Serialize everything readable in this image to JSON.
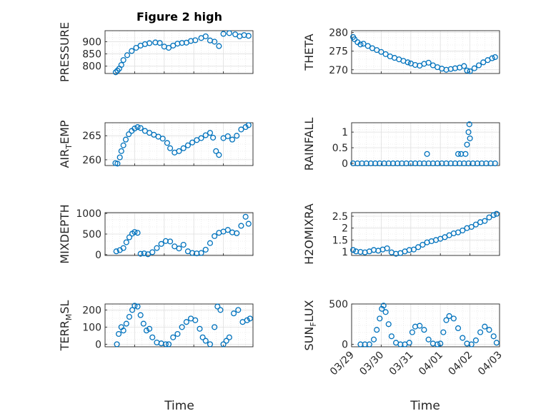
{
  "figure_title": "Figure 2 high",
  "colors": {
    "marker": "#0072BD",
    "axis": "#262626",
    "grid": "#DFDFDF"
  },
  "chart_data": [
    {
      "type": "scatter",
      "ylabel": "PRESSURE",
      "yticks": [
        800,
        850,
        900
      ],
      "ylim": [
        770,
        945
      ],
      "xlim": [
        0,
        5
      ],
      "x_tick_labels_shown": false,
      "x": [
        0.36,
        0.42,
        0.48,
        0.55,
        0.62,
        0.75,
        0.9,
        1.05,
        1.2,
        1.35,
        1.5,
        1.7,
        1.85,
        2.0,
        2.15,
        2.3,
        2.45,
        2.6,
        2.75,
        2.9,
        3.05,
        3.25,
        3.4,
        3.55,
        3.7,
        3.85,
        4.0,
        4.2,
        4.4,
        4.55,
        4.7,
        4.85
      ],
      "y": [
        775,
        782,
        790,
        805,
        825,
        845,
        862,
        875,
        884,
        890,
        894,
        897,
        895,
        880,
        875,
        884,
        892,
        895,
        896,
        903,
        906,
        915,
        922,
        905,
        900,
        882,
        932,
        935,
        930,
        922,
        927,
        924
      ]
    },
    {
      "type": "scatter",
      "ylabel": "THETA",
      "yticks": [
        270,
        275,
        280
      ],
      "ylim": [
        269,
        280.5
      ],
      "xlim": [
        0,
        5
      ],
      "x_tick_labels_shown": false,
      "x": [
        0.05,
        0.1,
        0.2,
        0.3,
        0.4,
        0.55,
        0.7,
        0.85,
        1.0,
        1.15,
        1.3,
        1.45,
        1.6,
        1.75,
        1.9,
        2.0,
        2.15,
        2.3,
        2.45,
        2.6,
        2.75,
        2.9,
        3.05,
        3.2,
        3.35,
        3.5,
        3.65,
        3.8,
        3.9,
        4.0,
        4.15,
        4.3,
        4.45,
        4.6,
        4.75,
        4.85
      ],
      "y": [
        278.8,
        278.2,
        277.4,
        276.8,
        277.0,
        276.4,
        275.8,
        275.3,
        274.8,
        274.2,
        273.6,
        273.2,
        272.8,
        272.4,
        272.0,
        271.7,
        271.3,
        271.1,
        271.6,
        271.9,
        271.2,
        270.7,
        270.3,
        270.0,
        270.2,
        270.4,
        270.6,
        271.0,
        269.8,
        269.6,
        270.4,
        271.2,
        272.0,
        272.6,
        273.1,
        273.4
      ]
    },
    {
      "type": "scatter",
      "ylabel": "AIR_TEMP",
      "yticks": [
        260,
        265
      ],
      "ylim": [
        258.8,
        267.7
      ],
      "xlim": [
        0,
        5
      ],
      "x_tick_labels_shown": false,
      "x": [
        0.35,
        0.42,
        0.5,
        0.55,
        0.62,
        0.7,
        0.8,
        0.9,
        1.0,
        1.1,
        1.2,
        1.35,
        1.5,
        1.65,
        1.8,
        1.95,
        2.1,
        2.2,
        2.35,
        2.5,
        2.65,
        2.8,
        2.95,
        3.1,
        3.25,
        3.4,
        3.55,
        3.65,
        3.75,
        3.85,
        4.0,
        4.15,
        4.3,
        4.45,
        4.6,
        4.75,
        4.85
      ],
      "y": [
        259.3,
        259.2,
        260.5,
        261.8,
        263.0,
        264.2,
        265.3,
        266.0,
        266.5,
        266.8,
        266.6,
        266.0,
        265.6,
        265.2,
        264.8,
        264.4,
        263.5,
        262.4,
        261.5,
        261.8,
        262.4,
        263.0,
        263.6,
        264.1,
        264.5,
        265.1,
        265.6,
        264.6,
        261.8,
        261.0,
        264.5,
        264.9,
        264.2,
        265.0,
        266.3,
        266.8,
        267.2
      ]
    },
    {
      "type": "scatter",
      "ylabel": "RAINFALL",
      "yticks": [
        0,
        0.5,
        1
      ],
      "ylim": [
        -0.07,
        1.3
      ],
      "xlim": [
        0,
        5
      ],
      "x_tick_labels_shown": false,
      "x": [
        0.05,
        0.2,
        0.35,
        0.5,
        0.65,
        0.8,
        0.95,
        1.1,
        1.25,
        1.4,
        1.55,
        1.7,
        1.85,
        2.0,
        2.15,
        2.3,
        2.45,
        2.6,
        2.75,
        2.9,
        3.05,
        3.2,
        3.35,
        3.5,
        3.65,
        3.8,
        3.95,
        4.1,
        4.25,
        4.4,
        4.55,
        4.7,
        4.85,
        2.55,
        3.6,
        3.7,
        3.85,
        3.9,
        3.95,
        3.98,
        4.0
      ],
      "y": [
        0,
        0,
        0,
        0,
        0,
        0,
        0,
        0,
        0,
        0,
        0,
        0,
        0,
        0,
        0,
        0,
        0,
        0,
        0,
        0,
        0,
        0,
        0,
        0,
        0,
        0,
        0,
        0,
        0,
        0,
        0,
        0,
        0,
        0.3,
        0.3,
        0.3,
        0.3,
        0.6,
        1.0,
        1.25,
        0.8
      ]
    },
    {
      "type": "scatter",
      "ylabel": "MIXDEPTH",
      "yticks": [
        0,
        500,
        1000
      ],
      "ylim": [
        -20,
        1020
      ],
      "xlim": [
        0,
        5
      ],
      "x_tick_labels_shown": false,
      "x": [
        0.38,
        0.5,
        0.62,
        0.72,
        0.82,
        0.92,
        1.0,
        1.1,
        1.2,
        1.32,
        1.45,
        1.6,
        1.75,
        1.9,
        2.05,
        2.2,
        2.35,
        2.5,
        2.65,
        2.8,
        2.95,
        3.1,
        3.25,
        3.4,
        3.55,
        3.7,
        3.85,
        4.0,
        4.15,
        4.3,
        4.45,
        4.6,
        4.75,
        4.85
      ],
      "y": [
        80,
        110,
        160,
        300,
        420,
        510,
        550,
        530,
        20,
        30,
        10,
        60,
        160,
        260,
        330,
        320,
        200,
        150,
        240,
        80,
        40,
        30,
        40,
        120,
        280,
        450,
        530,
        560,
        600,
        540,
        520,
        700,
        920,
        750
      ]
    },
    {
      "type": "scatter",
      "ylabel": "H2OMIXRA",
      "yticks": [
        1,
        1.5,
        2,
        2.5
      ],
      "ylim": [
        0.85,
        2.65
      ],
      "xlim": [
        0,
        5
      ],
      "x_tick_labels_shown": false,
      "x": [
        0.05,
        0.15,
        0.3,
        0.45,
        0.6,
        0.75,
        0.9,
        1.05,
        1.2,
        1.35,
        1.5,
        1.65,
        1.8,
        1.95,
        2.1,
        2.25,
        2.4,
        2.55,
        2.7,
        2.85,
        3.0,
        3.15,
        3.3,
        3.45,
        3.6,
        3.75,
        3.9,
        4.05,
        4.2,
        4.35,
        4.5,
        4.65,
        4.8,
        4.9
      ],
      "y": [
        1.08,
        1.02,
        1.0,
        0.98,
        1.02,
        1.08,
        1.05,
        1.1,
        1.15,
        0.98,
        0.92,
        0.95,
        1.02,
        1.08,
        1.1,
        1.2,
        1.3,
        1.4,
        1.45,
        1.5,
        1.55,
        1.62,
        1.7,
        1.78,
        1.82,
        1.9,
        2.0,
        2.05,
        2.15,
        2.25,
        2.3,
        2.45,
        2.55,
        2.6
      ]
    },
    {
      "type": "scatter",
      "ylabel": "TERR_MSL",
      "yticks": [
        0,
        100,
        200
      ],
      "ylim": [
        -15,
        235
      ],
      "xlim": [
        0,
        5
      ],
      "x_tick_labels_shown": false,
      "x": [
        0.4,
        0.46,
        0.55,
        0.62,
        0.72,
        0.82,
        0.92,
        1.0,
        1.1,
        1.2,
        1.3,
        1.4,
        1.5,
        1.6,
        1.75,
        1.9,
        2.05,
        2.15,
        2.3,
        2.45,
        2.6,
        2.75,
        2.9,
        3.05,
        3.2,
        3.3,
        3.4,
        3.55,
        3.7,
        3.8,
        3.9,
        4.0,
        4.1,
        4.2,
        4.35,
        4.5,
        4.65,
        4.8,
        4.9
      ],
      "y": [
        0,
        60,
        100,
        80,
        120,
        160,
        200,
        225,
        220,
        170,
        120,
        80,
        90,
        40,
        10,
        5,
        0,
        0,
        40,
        60,
        100,
        130,
        150,
        140,
        90,
        40,
        20,
        0,
        100,
        220,
        200,
        0,
        20,
        40,
        180,
        200,
        130,
        140,
        150
      ]
    },
    {
      "type": "scatter",
      "ylabel": "SUN_FLUX",
      "yticks": [
        0,
        500
      ],
      "ylim": [
        -30,
        500
      ],
      "xlim": [
        0,
        5
      ],
      "x_tick_labels_shown": true,
      "x": [
        0.3,
        0.45,
        0.6,
        0.75,
        0.85,
        0.95,
        1.02,
        1.08,
        1.15,
        1.25,
        1.35,
        1.5,
        1.65,
        1.8,
        1.95,
        2.05,
        2.15,
        2.3,
        2.45,
        2.6,
        2.75,
        2.9,
        3.0,
        3.1,
        3.2,
        3.3,
        3.45,
        3.6,
        3.75,
        3.9,
        4.05,
        4.2,
        4.35,
        4.5,
        4.65,
        4.8,
        4.9
      ],
      "y": [
        0,
        0,
        0,
        60,
        180,
        320,
        440,
        480,
        400,
        250,
        100,
        20,
        0,
        0,
        20,
        150,
        220,
        230,
        180,
        60,
        10,
        0,
        10,
        150,
        300,
        350,
        320,
        200,
        80,
        10,
        0,
        50,
        150,
        220,
        180,
        100,
        20
      ]
    }
  ],
  "x_tick_labels": [
    "03/29",
    "03/30",
    "03/31",
    "04/01",
    "04/02",
    "04/03"
  ],
  "xlabels": [
    "Time",
    "Time"
  ]
}
